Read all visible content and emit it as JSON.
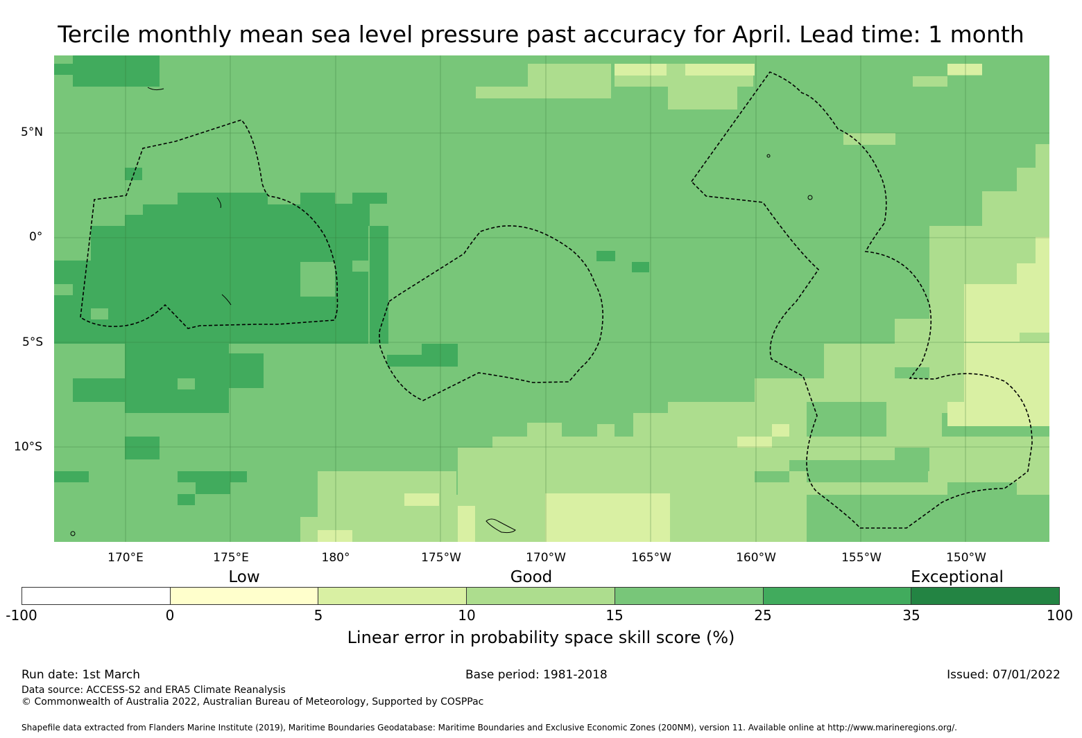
{
  "title": "Tercile monthly mean sea level pressure past accuracy for April. Lead time: 1 month",
  "map": {
    "lat_labels": [
      "5°N",
      "0°",
      "5°S",
      "10°S"
    ],
    "lon_labels": [
      "170°E",
      "175°E",
      "180°",
      "175°W",
      "170°W",
      "165°W",
      "160°W",
      "155°W",
      "150°W"
    ],
    "colors": {
      "neg": "#ffffff",
      "c0_5": "#ffffcc",
      "c5_10": "#d9f0a3",
      "c10_15": "#addd8e",
      "c15_25": "#78c679",
      "c25_35": "#41ab5d",
      "c35_100": "#238443"
    }
  },
  "legend": {
    "categories": [
      "Low",
      "Good",
      "Exceptional"
    ],
    "ticks": [
      "-100",
      "0",
      "5",
      "10",
      "15",
      "25",
      "35",
      "100"
    ],
    "title": "Linear error in probability space skill score (%)",
    "colors": [
      "#ffffff",
      "#ffffcc",
      "#d9f0a3",
      "#addd8e",
      "#78c679",
      "#41ab5d",
      "#238443"
    ]
  },
  "footer": {
    "run_date": "Run date: 1st March",
    "base_period": "Base period: 1981-2018",
    "issued": "Issued: 07/01/2022",
    "data_source": "Data source: ACCESS-S2 and ERA5 Climate Reanalysis",
    "copyright": "© Commonwealth of Australia 2022, Australian Bureau of Meteorology, Supported by COSPPac",
    "shapefile": "Shapefile data extracted from Flanders Marine Institute (2019), Maritime Boundaries Geodatabase: Maritime Boundaries and Exclusive Economic Zones (200NM), version 11. Available online at http://www.marineregions.org/."
  }
}
